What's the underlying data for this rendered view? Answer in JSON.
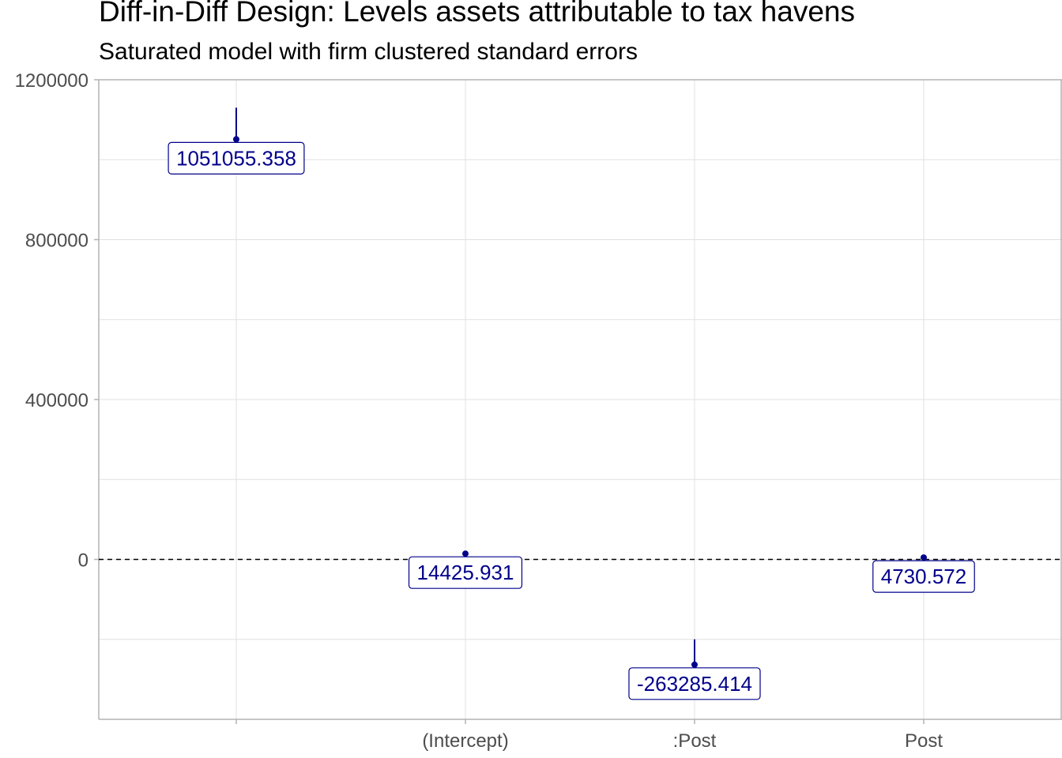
{
  "chart_data": {
    "type": "scatter",
    "title": "Diff-in-Diff Design: Levels assets attributable to tax havens",
    "subtitle": "Saturated model with firm clustered standard errors",
    "xlabel": "",
    "ylabel": "",
    "categories": [
      "",
      "(Intercept)",
      ":Post",
      "Post"
    ],
    "values": [
      1051055.358,
      14425.931,
      -263285.414,
      4730.572
    ],
    "ci_low": [
      970000,
      9000,
      -350000,
      2000
    ],
    "ci_high": [
      1130000,
      20000,
      -200000,
      8000
    ],
    "labels": [
      "1051055.358",
      "14425.931",
      "-263285.414",
      "4730.572"
    ],
    "ylim": [
      -400000,
      1200000
    ],
    "yticks": [
      0,
      400000,
      800000,
      1200000
    ],
    "ytick_labels": [
      "0",
      "400000",
      "800000",
      "1200000"
    ],
    "reference_line": 0,
    "grid": true,
    "colors": {
      "series": "#00008b",
      "grid": "#e0e0e0",
      "axis": "#b3b3b3",
      "reference": "#000000"
    }
  }
}
